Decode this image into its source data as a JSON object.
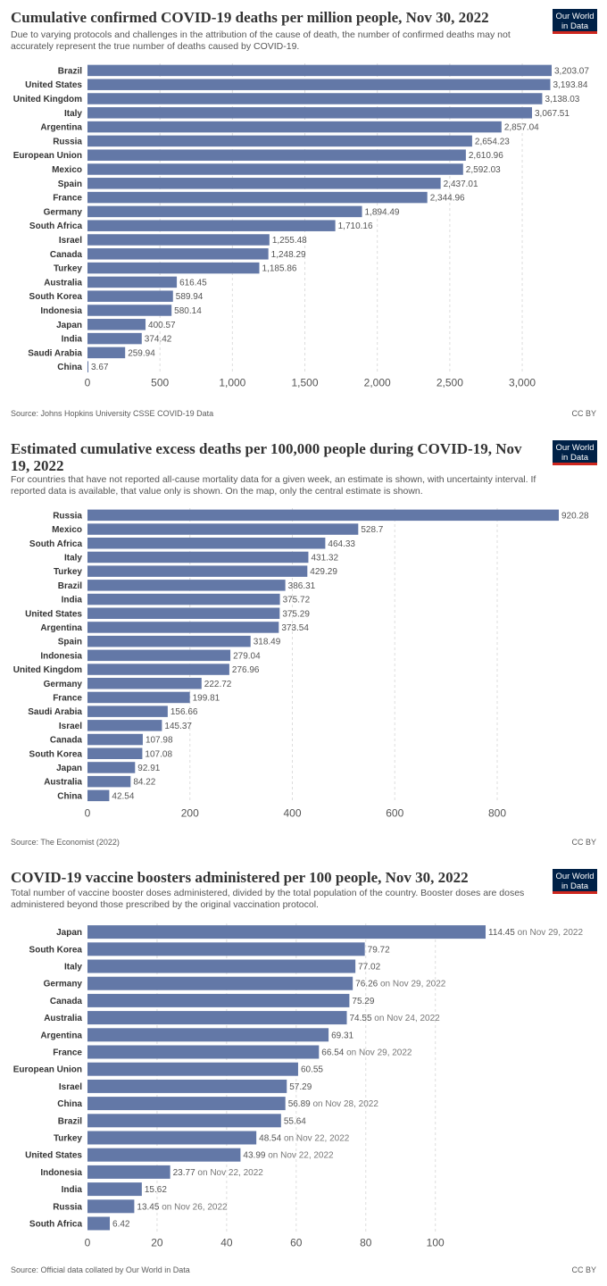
{
  "colors": {
    "bar": "#6378a7",
    "grid": "#dddddd",
    "label": "#333333",
    "value": "#555555",
    "note": "#777777"
  },
  "logo": {
    "line1": "Our World",
    "line2": "in Data"
  },
  "chart_data": [
    {
      "type": "bar",
      "orientation": "horizontal",
      "title": "Cumulative confirmed COVID-19 deaths per million people, Nov 30, 2022",
      "subtitle": "Due to varying protocols and challenges in the attribution of the cause of death, the number of confirmed deaths may not accurately represent the true number of deaths caused by COVID-19.",
      "categories": [
        "Brazil",
        "United States",
        "United Kingdom",
        "Italy",
        "Argentina",
        "Russia",
        "European Union",
        "Mexico",
        "Spain",
        "France",
        "Germany",
        "South Africa",
        "Israel",
        "Canada",
        "Turkey",
        "Australia",
        "South Korea",
        "Indonesia",
        "Japan",
        "India",
        "Saudi Arabia",
        "China"
      ],
      "values": [
        3203.07,
        3193.84,
        3138.03,
        3067.51,
        2857.04,
        2654.23,
        2610.96,
        2592.03,
        2437.01,
        2344.96,
        1894.49,
        1710.16,
        1255.48,
        1248.29,
        1185.86,
        616.45,
        589.94,
        580.14,
        400.57,
        374.42,
        259.94,
        3.67
      ],
      "value_labels": [
        "3,203.07",
        "3,193.84",
        "3,138.03",
        "3,067.51",
        "2,857.04",
        "2,654.23",
        "2,610.96",
        "2,592.03",
        "2,437.01",
        "2,344.96",
        "1,894.49",
        "1,710.16",
        "1,255.48",
        "1,248.29",
        "1,185.86",
        "616.45",
        "589.94",
        "580.14",
        "400.57",
        "374.42",
        "259.94",
        "3.67"
      ],
      "notes": [
        "",
        "",
        "",
        "",
        "",
        "",
        "",
        "",
        "",
        "",
        "",
        "",
        "",
        "",
        "",
        "",
        "",
        "",
        "",
        "",
        "",
        ""
      ],
      "xticks": [
        0,
        500,
        1000,
        1500,
        2000,
        2500,
        3000
      ],
      "xtick_labels": [
        "0",
        "500",
        "1,000",
        "1,500",
        "2,000",
        "2,500",
        "3,000"
      ],
      "xlim": [
        0,
        3203.07
      ],
      "grid": true,
      "source": "Source: Johns Hopkins University CSSE COVID-19 Data",
      "license": "CC BY"
    },
    {
      "type": "bar",
      "orientation": "horizontal",
      "title": "Estimated cumulative excess deaths per 100,000 people during COVID-19, Nov 19, 2022",
      "subtitle": "For countries that have not reported all-cause mortality data for a given week, an estimate is shown, with uncertainty interval. If reported data is available, that value only is shown. On the map, only the central estimate is shown.",
      "categories": [
        "Russia",
        "Mexico",
        "South Africa",
        "Italy",
        "Turkey",
        "Brazil",
        "India",
        "United States",
        "Argentina",
        "Spain",
        "Indonesia",
        "United Kingdom",
        "Germany",
        "France",
        "Saudi Arabia",
        "Israel",
        "Canada",
        "South Korea",
        "Japan",
        "Australia",
        "China"
      ],
      "values": [
        920.28,
        528.7,
        464.33,
        431.32,
        429.29,
        386.31,
        375.72,
        375.29,
        373.54,
        318.49,
        279.04,
        276.96,
        222.72,
        199.81,
        156.66,
        145.37,
        107.98,
        107.08,
        92.91,
        84.22,
        42.54
      ],
      "value_labels": [
        "920.28",
        "528.7",
        "464.33",
        "431.32",
        "429.29",
        "386.31",
        "375.72",
        "375.29",
        "373.54",
        "318.49",
        "279.04",
        "276.96",
        "222.72",
        "199.81",
        "156.66",
        "145.37",
        "107.98",
        "107.08",
        "92.91",
        "84.22",
        "42.54"
      ],
      "notes": [
        "",
        "",
        "",
        "",
        "",
        "",
        "",
        "",
        "",
        "",
        "",
        "",
        "",
        "",
        "",
        "",
        "",
        "",
        "",
        "",
        ""
      ],
      "xticks": [
        0,
        200,
        400,
        600,
        800
      ],
      "xtick_labels": [
        "0",
        "200",
        "400",
        "600",
        "800"
      ],
      "xlim": [
        0,
        920.28
      ],
      "grid": true,
      "source": "Source: The Economist (2022)",
      "license": "CC BY"
    },
    {
      "type": "bar",
      "orientation": "horizontal",
      "title": "COVID-19 vaccine boosters administered per 100 people, Nov 30, 2022",
      "subtitle": "Total number of vaccine booster doses administered, divided by the total population of the country. Booster doses are doses administered beyond those prescribed by the original vaccination protocol.",
      "categories": [
        "Japan",
        "South Korea",
        "Italy",
        "Germany",
        "Canada",
        "Australia",
        "Argentina",
        "France",
        "European Union",
        "Israel",
        "China",
        "Brazil",
        "Turkey",
        "United States",
        "Indonesia",
        "India",
        "Russia",
        "South Africa"
      ],
      "values": [
        114.45,
        79.72,
        77.02,
        76.26,
        75.29,
        74.55,
        69.31,
        66.54,
        60.55,
        57.29,
        56.89,
        55.64,
        48.54,
        43.99,
        23.77,
        15.62,
        13.45,
        6.42
      ],
      "value_labels": [
        "114.45",
        "79.72",
        "77.02",
        "76.26",
        "75.29",
        "74.55",
        "69.31",
        "66.54",
        "60.55",
        "57.29",
        "56.89",
        "55.64",
        "48.54",
        "43.99",
        "23.77",
        "15.62",
        "13.45",
        "6.42"
      ],
      "notes": [
        "on Nov 29, 2022",
        "",
        "",
        "on Nov 29, 2022",
        "",
        "on Nov 24, 2022",
        "",
        "on Nov 29, 2022",
        "",
        "",
        "on Nov 28, 2022",
        "",
        "on Nov 22, 2022",
        "on Nov 22, 2022",
        "on Nov 22, 2022",
        "",
        "on Nov 26, 2022",
        ""
      ],
      "xticks": [
        0,
        20,
        40,
        60,
        80,
        100
      ],
      "xtick_labels": [
        "0",
        "20",
        "40",
        "60",
        "80",
        "100"
      ],
      "xlim": [
        0,
        114.45
      ],
      "grid": true,
      "source": "Source: Official data collated by Our World in Data",
      "license": "CC BY"
    }
  ]
}
